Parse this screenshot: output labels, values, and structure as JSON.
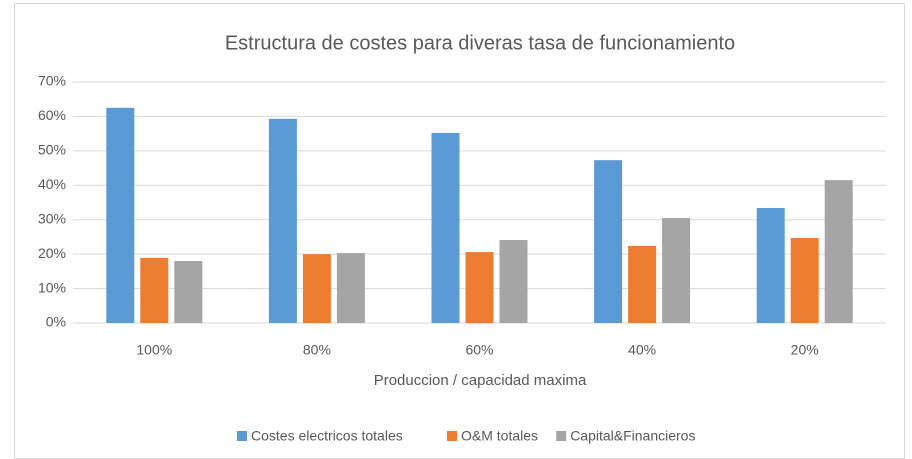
{
  "chart_data": {
    "type": "bar",
    "title": "Estructura de costes para diveras tasa de funcionamiento",
    "x_label": "Produccion / capacidad maxima",
    "categories": [
      "100%",
      "80%",
      "60%",
      "40%",
      "20%"
    ],
    "series": [
      {
        "name": "Costes electricos totales",
        "color": "#5b9bd5",
        "values": [
          62.5,
          59.3,
          55.2,
          47.3,
          33.4
        ]
      },
      {
        "name": "O&M totales",
        "color": "#ed7d31",
        "values": [
          18.9,
          20.0,
          20.6,
          22.4,
          24.7
        ]
      },
      {
        "name": "Capital&Financieros",
        "color": "#a5a5a5",
        "values": [
          18.0,
          20.3,
          24.1,
          30.5,
          41.5
        ]
      }
    ],
    "ylim": [
      0,
      70
    ],
    "yticks": [
      {
        "value": 0,
        "label": "0%"
      },
      {
        "value": 10,
        "label": "10%"
      },
      {
        "value": 20,
        "label": "20%"
      },
      {
        "value": 30,
        "label": "30%"
      },
      {
        "value": 40,
        "label": "40%"
      },
      {
        "value": 50,
        "label": "50%"
      },
      {
        "value": 60,
        "label": "60%"
      },
      {
        "value": 70,
        "label": "70%"
      }
    ],
    "grid": true,
    "legend": "bottom"
  }
}
